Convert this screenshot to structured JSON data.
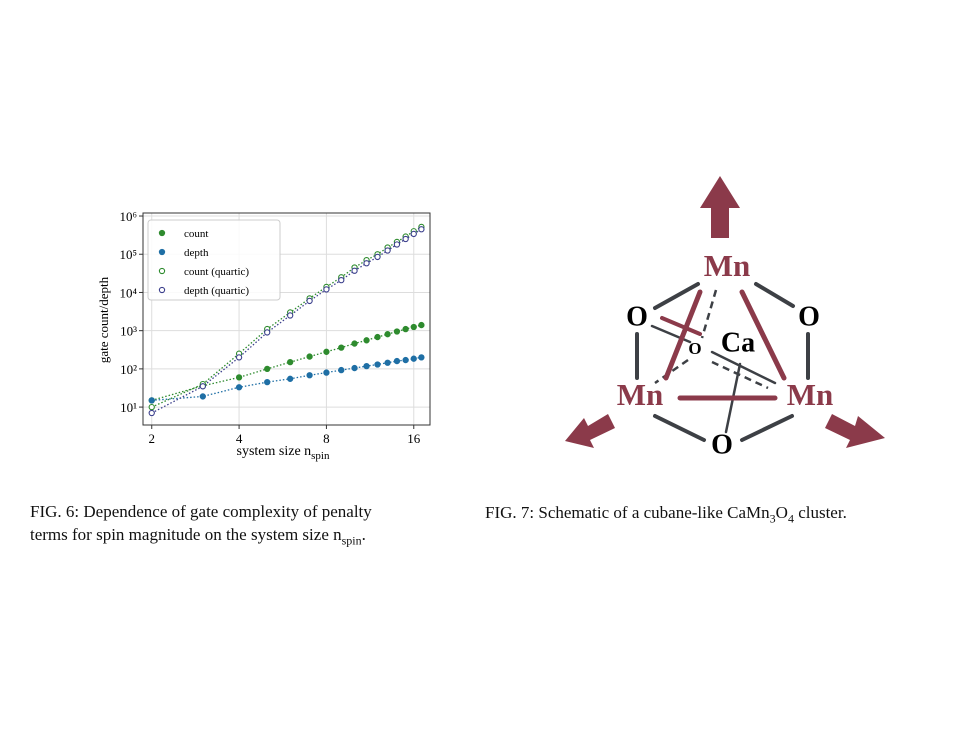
{
  "chart_data": {
    "type": "scatter",
    "x_label": "system size n",
    "x_label_sub": "spin",
    "y_label": "gate count/depth",
    "xlog": true,
    "ylog": true,
    "grid": true,
    "legend": "upper left",
    "xlim": [
      1.866,
      18.2
    ],
    "xticks": [
      2,
      4,
      8,
      16
    ],
    "ylim": [
      3.4,
      1200000
    ],
    "yticks": [
      {
        "value": 10,
        "label": "10¹"
      },
      {
        "value": 100,
        "label": "10²"
      },
      {
        "value": 1000,
        "label": "10³"
      },
      {
        "value": 10000,
        "label": "10⁴"
      },
      {
        "value": 100000,
        "label": "10⁵"
      },
      {
        "value": 1000000,
        "label": "10⁶"
      }
    ],
    "x": [
      2,
      3,
      4,
      5,
      6,
      7,
      8,
      9,
      10,
      11,
      12,
      13,
      14,
      15,
      16,
      17
    ],
    "series": [
      {
        "name": "count",
        "color": "#2e8b2e",
        "filled": true,
        "values": [
          15,
          36,
          60,
          100,
          150,
          210,
          280,
          360,
          460,
          560,
          680,
          810,
          950,
          1100,
          1250,
          1400
        ]
      },
      {
        "name": "depth",
        "color": "#1f6fa5",
        "filled": true,
        "values": [
          15,
          19,
          33,
          45,
          55,
          68,
          80,
          93,
          105,
          118,
          130,
          145,
          160,
          170,
          185,
          200
        ]
      },
      {
        "name": "count (quartic)",
        "color": "#2e8b2e",
        "filled": false,
        "values": [
          10,
          40,
          250,
          1100,
          3000,
          7000,
          14000,
          25000,
          45000,
          70000,
          100000,
          150000,
          210000,
          290000,
          400000,
          520000
        ]
      },
      {
        "name": "depth (quartic)",
        "color": "#3b3f8c",
        "filled": false,
        "values": [
          7,
          35,
          200,
          900,
          2500,
          6000,
          12000,
          21000,
          37000,
          58000,
          85000,
          125000,
          180000,
          250000,
          340000,
          450000
        ]
      }
    ]
  },
  "fig6_caption": {
    "line1": "FIG. 6: Dependence of gate complexity of penalty",
    "line2": "terms for spin magnitude on the system size n",
    "line2_sub": "spin",
    "line2_end": "."
  },
  "diagram": {
    "mn_top": "Mn",
    "mn_left": "Mn",
    "mn_right": "Mn",
    "o_left": "O",
    "o_right": "O",
    "o_bottom": "O",
    "o_back": "O",
    "ca": "Ca"
  },
  "fig7_caption": [
    "FIG. 7: Schematic of a cubane-like CaMn",
    "3",
    "O",
    "4",
    " cluster."
  ]
}
